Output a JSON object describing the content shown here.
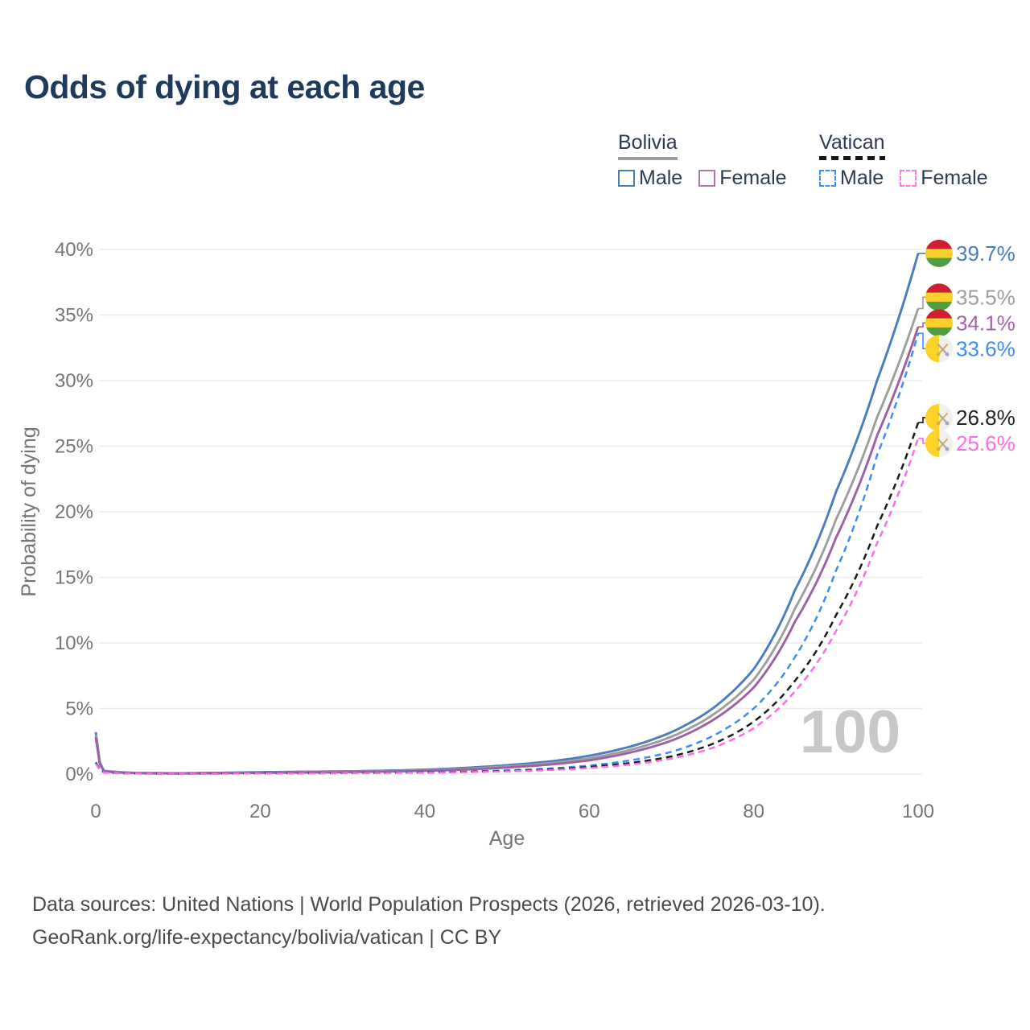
{
  "title": "Odds of dying at each age",
  "watermark": "100",
  "footer": {
    "line1": "Data sources: United Nations | World Population Prospects (2026, retrieved 2026-03-10).",
    "line2": "GeoRank.org/life-expectancy/bolivia/vatican | CC BY"
  },
  "colors": {
    "title_text": "#1e3a5c",
    "legend_text": "#2c3a52",
    "axis_text": "#757575",
    "grid_line": "#ebebeb",
    "watermark_text": "#c8c8c8",
    "footer_text": "#4a4a4a"
  },
  "legend": {
    "groups": [
      {
        "label": "Bolivia",
        "line_style": "solid",
        "line_color": "#9e9e9e",
        "items": [
          {
            "label": "Male",
            "color": "#4a7dbd",
            "dash": "solid"
          },
          {
            "label": "Female",
            "color": "#b077ae",
            "dash": "solid"
          }
        ]
      },
      {
        "label": "Vatican",
        "line_style": "dashed",
        "line_color": "#161616",
        "items": [
          {
            "label": "Male",
            "color": "#3f8df2",
            "dash": "dashed"
          },
          {
            "label": "Female",
            "color": "#ff7ae1",
            "dash": "dashed"
          }
        ]
      }
    ]
  },
  "chart_data": {
    "type": "line",
    "title": "Odds of dying at each age",
    "xlabel": "Age",
    "ylabel": "Probability of dying",
    "xlim": [
      0,
      100
    ],
    "ylim": [
      0,
      40
    ],
    "x_ticks": [
      0,
      20,
      40,
      60,
      80,
      100
    ],
    "y_ticks": [
      0,
      5,
      10,
      15,
      20,
      25,
      30,
      35,
      40
    ],
    "y_tick_suffix": "%",
    "grid": "horizontal",
    "legend_position": "top-right",
    "age_counter": "100",
    "ages": [
      0,
      1,
      5,
      10,
      15,
      20,
      25,
      30,
      35,
      40,
      45,
      50,
      55,
      60,
      65,
      70,
      75,
      80,
      85,
      90,
      95,
      100
    ],
    "series": [
      {
        "name": "Bolivia male",
        "flag": "bolivia",
        "color": "#4a7dbd",
        "dash": "solid",
        "end_label": "39.7%",
        "end_value": 39.7,
        "label_color": "#4a7dbd",
        "values": [
          3.2,
          0.25,
          0.09,
          0.07,
          0.1,
          0.15,
          0.18,
          0.21,
          0.26,
          0.34,
          0.48,
          0.68,
          0.95,
          1.4,
          2.1,
          3.2,
          5.0,
          8.0,
          14.0,
          21.5,
          30.0,
          39.7
        ]
      },
      {
        "name": "Bolivia both sexes",
        "flag": "bolivia",
        "color": "#9e9e9e",
        "dash": "solid",
        "end_label": "35.5%",
        "end_value": 35.5,
        "label_color": "#9e9e9e",
        "values": [
          3.0,
          0.22,
          0.08,
          0.06,
          0.08,
          0.12,
          0.15,
          0.18,
          0.22,
          0.29,
          0.41,
          0.58,
          0.82,
          1.2,
          1.85,
          2.85,
          4.5,
          7.2,
          12.6,
          19.4,
          27.2,
          35.5
        ]
      },
      {
        "name": "Bolivia female",
        "flag": "bolivia",
        "color": "#9d61a3",
        "dash": "solid",
        "end_label": "34.1%",
        "end_value": 34.1,
        "label_color": "#a564a8",
        "values": [
          2.8,
          0.2,
          0.07,
          0.05,
          0.07,
          0.1,
          0.12,
          0.15,
          0.19,
          0.25,
          0.35,
          0.5,
          0.72,
          1.05,
          1.65,
          2.55,
          4.1,
          6.6,
          11.6,
          18.0,
          25.8,
          34.1
        ]
      },
      {
        "name": "Vatican male",
        "flag": "vatican",
        "color": "#3f8df2",
        "dash": "dashed",
        "end_label": "33.6%",
        "end_value": 33.6,
        "label_color": "#3f8df2",
        "values": [
          0.9,
          0.15,
          0.05,
          0.04,
          0.05,
          0.07,
          0.08,
          0.09,
          0.11,
          0.15,
          0.2,
          0.28,
          0.42,
          0.65,
          1.05,
          1.7,
          2.9,
          5.0,
          8.9,
          15.5,
          24.3,
          33.6
        ]
      },
      {
        "name": "Vatican both sexes",
        "flag": "vatican",
        "color": "#1b1b1b",
        "dash": "dashed",
        "end_label": "26.8%",
        "end_value": 26.8,
        "label_color": "#222222",
        "values": [
          0.85,
          0.13,
          0.04,
          0.03,
          0.04,
          0.06,
          0.07,
          0.08,
          0.1,
          0.13,
          0.17,
          0.24,
          0.35,
          0.54,
          0.85,
          1.35,
          2.3,
          4.0,
          7.1,
          12.1,
          18.9,
          26.8
        ]
      },
      {
        "name": "Vatican female",
        "flag": "vatican",
        "color": "#ff6ce1",
        "dash": "dashed",
        "end_label": "25.6%",
        "end_value": 25.6,
        "label_color": "#ff6ce1",
        "values": [
          0.8,
          0.12,
          0.04,
          0.03,
          0.03,
          0.05,
          0.06,
          0.07,
          0.09,
          0.11,
          0.15,
          0.21,
          0.3,
          0.46,
          0.73,
          1.18,
          2.0,
          3.5,
          6.3,
          10.9,
          17.6,
          25.6
        ]
      }
    ]
  }
}
